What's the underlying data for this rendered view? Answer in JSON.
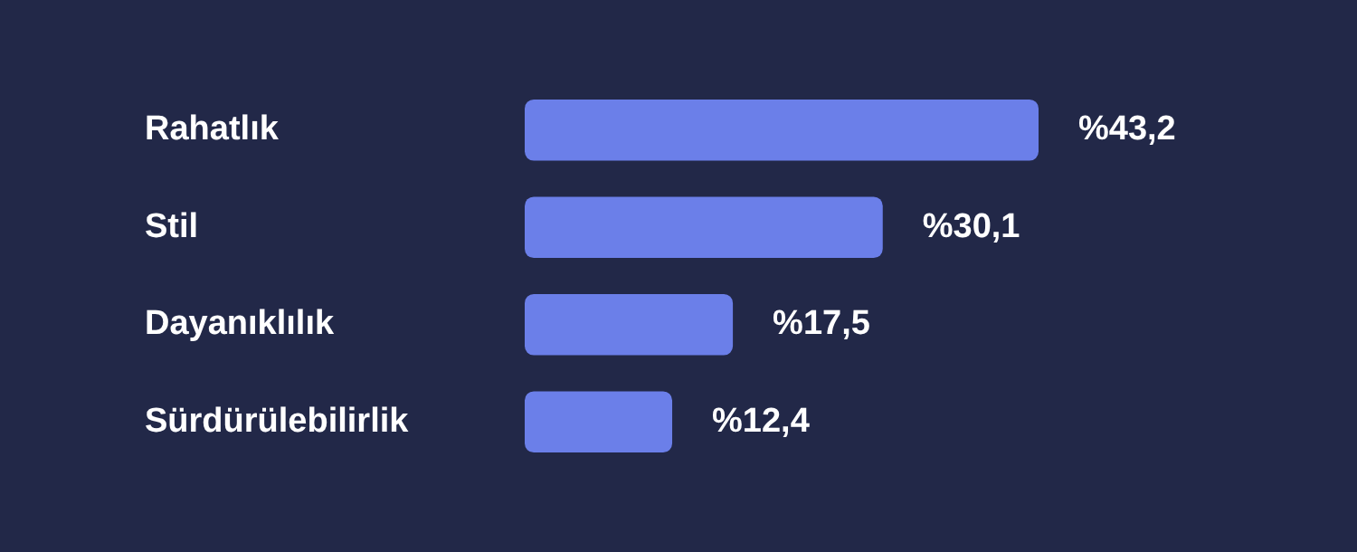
{
  "chart_data": {
    "type": "bar",
    "orientation": "horizontal",
    "categories": [
      "Rahatlık",
      "Stil",
      "Dayanıklılık",
      "Sürdürülebilirlik"
    ],
    "values": [
      43.2,
      30.1,
      17.5,
      12.4
    ],
    "value_labels": [
      "%43,2",
      "%30,1",
      "%17,5",
      "%12,4"
    ],
    "color": "#6b7fe9"
  }
}
